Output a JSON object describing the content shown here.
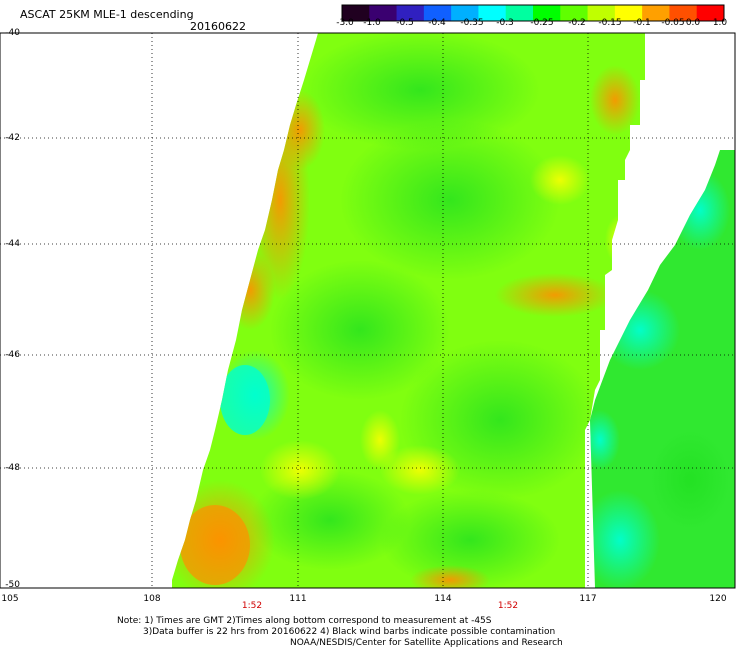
{
  "title": "ASCAT 25KM MLE-1 descending",
  "date": "20160622",
  "colorbar": {
    "labels": [
      "-3.0",
      "-1.0",
      "-0.5",
      "-0.4",
      "-0.35",
      "-0.3",
      "-0.25",
      "-0.2",
      "-0.15",
      "-0.1",
      "-0.05",
      "0.0",
      "1.0"
    ],
    "colors": [
      "#200020",
      "#3a0070",
      "#3020c0",
      "#1060ff",
      "#00b0ff",
      "#00ffff",
      "#00ffa0",
      "#00ff00",
      "#60ff00",
      "#c0ff00",
      "#ffff00",
      "#ffa000",
      "#ff5000",
      "#ff0000"
    ]
  },
  "axes": {
    "lat_labels": [
      "-40",
      "-42",
      "-44",
      "-46",
      "-48",
      "-50"
    ],
    "lon_labels": [
      "105",
      "108",
      "111",
      "114",
      "117",
      "120"
    ]
  },
  "time_labels": [
    "1:52",
    "1:52"
  ],
  "notes": [
    "Note: 1) Times are GMT 2)Times along bottom correspond to measurement at -45S",
    "3)Data buffer is 22 hrs from 20160622 4) Black wind barbs indicate possible contamination",
    "NOAA/NESDIS/Center for Satellite Applications and Research"
  ]
}
